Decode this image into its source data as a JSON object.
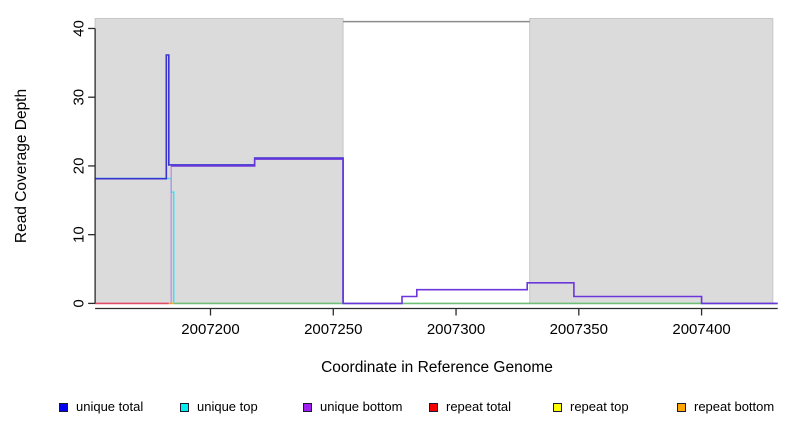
{
  "chart_data": {
    "type": "line",
    "subtype": "step-coverage",
    "title": "",
    "xlabel": "Coordinate in Reference Genome",
    "ylabel": "Read Coverage Depth",
    "xlim": [
      2007153,
      2007431
    ],
    "ylim": [
      0,
      41
    ],
    "x_ticks": [
      2007200,
      2007250,
      2007300,
      2007350,
      2007400
    ],
    "y_ticks": [
      0,
      10,
      20,
      30,
      40
    ],
    "grid": false,
    "legend_position": "bottom",
    "shade_color": "#dbdbdb",
    "shade_border_color": "#c6c6c6",
    "shaded_regions": [
      {
        "x0": 2007153,
        "x1": 2007254
      },
      {
        "x0": 2007330,
        "x1": 2007429
      }
    ],
    "top_boundary_line": {
      "y": 41,
      "x0": 2007254,
      "x1": 2007330,
      "color": "#8c8c8c"
    },
    "series": [
      {
        "name": "unique total",
        "legend_color": "#0000ee",
        "render_color": "#3a34cf",
        "points": [
          [
            2007153,
            18
          ],
          [
            2007182,
            36
          ],
          [
            2007183,
            20
          ],
          [
            2007218,
            21
          ],
          [
            2007254,
            0
          ]
        ]
      },
      {
        "name": "unique top",
        "legend_color": "#00eeee",
        "render_color": "#49ddf0",
        "points": [
          [
            2007153,
            18
          ],
          [
            2007184,
            16
          ],
          [
            2007185,
            0
          ]
        ]
      },
      {
        "name": "unique bottom",
        "legend_color": "#a020f0",
        "render_color": "#6c36dd",
        "rise_color": "#c791e3",
        "points": [
          [
            2007184,
            20
          ],
          [
            2007218,
            21
          ],
          [
            2007254,
            0
          ],
          [
            2007278,
            1
          ],
          [
            2007284,
            2
          ],
          [
            2007329,
            3
          ],
          [
            2007348,
            1
          ],
          [
            2007400,
            0
          ],
          [
            2007431,
            0
          ]
        ]
      },
      {
        "name": "repeat total",
        "legend_color": "#f40000",
        "render_color": "#e04c68",
        "points": [
          [
            2007153,
            0
          ],
          [
            2007183,
            0
          ]
        ]
      },
      {
        "name": "repeat top",
        "legend_color": "#ffff00",
        "render_color": "#6fbf77",
        "points": [
          [
            2007185,
            0
          ],
          [
            2007431,
            0
          ]
        ]
      },
      {
        "name": "repeat bottom",
        "legend_color": "#ffa500",
        "render_color": "#ffa025",
        "points": [
          [
            2007183,
            0
          ],
          [
            2007185,
            0
          ]
        ]
      }
    ],
    "draw_order": [
      "repeat top",
      "repeat total",
      "repeat bottom",
      "unique top",
      "unique total",
      "unique bottom"
    ]
  },
  "legend": {
    "items": [
      {
        "label": "unique total",
        "color": "#0000ee"
      },
      {
        "label": "unique top",
        "color": "#00eeee"
      },
      {
        "label": "unique bottom",
        "color": "#a020f0"
      },
      {
        "label": "repeat total",
        "color": "#f40000"
      },
      {
        "label": "repeat top",
        "color": "#ffff00"
      },
      {
        "label": "repeat bottom",
        "color": "#ffa500"
      }
    ]
  }
}
